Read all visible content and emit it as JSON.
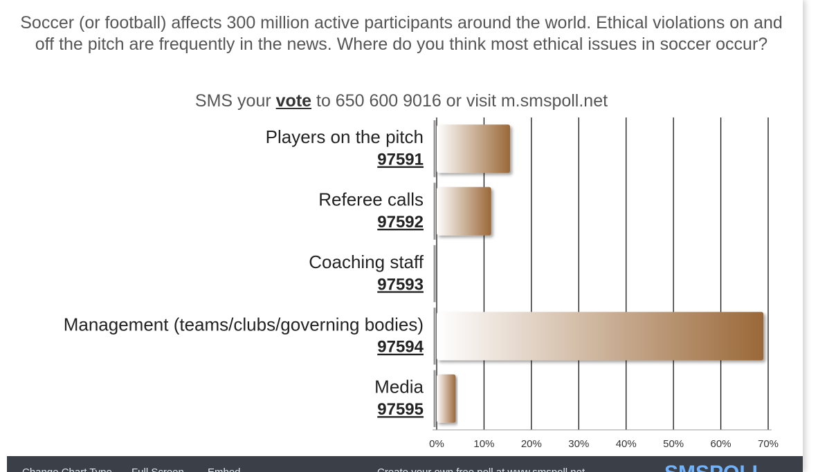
{
  "chart_data": {
    "type": "bar",
    "orientation": "horizontal",
    "title": "Soccer (or football) affects 300 million active participants around the world. Ethical violations on and off  the pitch are frequently in the news. Where do you think most ethical issues in soccer occur?",
    "subtitle_parts": [
      "SMS your",
      "vote",
      "to 650 600 9016 or visit m.smspoll.net"
    ],
    "categories": [
      "Players on the pitch",
      "Referee calls",
      "Coaching staff",
      "Management (teams/clubs/governing bodies)",
      "Media"
    ],
    "codes": [
      "97591",
      "97592",
      "97593",
      "97594",
      "97595"
    ],
    "values": [
      15.5,
      11.5,
      0,
      69,
      4
    ],
    "color": "#9a6838",
    "xlim": [
      0,
      70
    ],
    "xticks": [
      {
        "value": 0,
        "label": "0%"
      },
      {
        "value": 10,
        "label": "10%"
      },
      {
        "value": 20,
        "label": "20%"
      },
      {
        "value": 30,
        "label": "30%"
      },
      {
        "value": 40,
        "label": "40%"
      },
      {
        "value": 50,
        "label": "50%"
      },
      {
        "value": 60,
        "label": "60%"
      },
      {
        "value": 70,
        "label": "70%"
      }
    ],
    "grid": true
  },
  "footer": {
    "links": [
      "Change Chart Type",
      "Full Screen",
      "Embed"
    ],
    "promo": "Create your own free poll at www.smspoll.net",
    "logo": "SMSPOLL"
  }
}
